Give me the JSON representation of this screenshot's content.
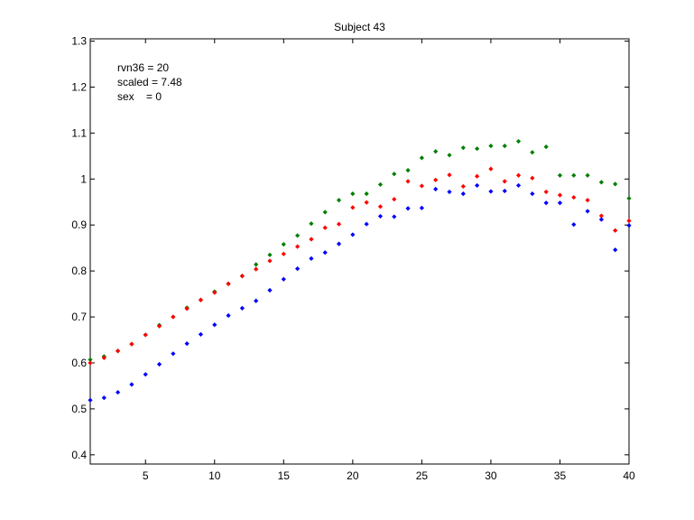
{
  "chart_data": {
    "type": "scatter",
    "title": "Subject 43",
    "xlabel": "",
    "ylabel": "",
    "xlim": [
      1,
      40
    ],
    "ylim": [
      0.38,
      1.305
    ],
    "xticks": [
      5,
      10,
      15,
      20,
      25,
      30,
      35,
      40
    ],
    "yticks": [
      0.4,
      0.5,
      0.6,
      0.7,
      0.8,
      0.9,
      1,
      1.1,
      1.2,
      1.3
    ],
    "xtick_labels": [
      "5",
      "10",
      "15",
      "20",
      "25",
      "30",
      "35",
      "40"
    ],
    "ytick_labels": [
      "0.4",
      "0.5",
      "0.6",
      "0.7",
      "0.8",
      "0.9",
      "1",
      "1.1",
      "1.2",
      "1.3"
    ],
    "grid": false,
    "annotations": [
      "rvn36 = 20",
      "scaled = 7.48",
      "sex    = 0"
    ],
    "x": [
      1,
      2,
      3,
      4,
      5,
      6,
      7,
      8,
      9,
      10,
      11,
      12,
      13,
      14,
      15,
      16,
      17,
      18,
      19,
      20,
      21,
      22,
      23,
      24,
      25,
      26,
      27,
      28,
      29,
      30,
      31,
      32,
      33,
      34,
      35,
      36,
      37,
      38,
      39,
      40
    ],
    "series": [
      {
        "color": "#008000",
        "values": [
          0.607,
          0.614,
          0.626,
          0.641,
          0.661,
          0.682,
          0.7,
          0.72,
          0.737,
          0.755,
          0.772,
          0.789,
          0.814,
          0.835,
          0.858,
          0.877,
          0.903,
          0.928,
          0.954,
          0.968,
          0.968,
          0.988,
          1.011,
          1.019,
          1.046,
          1.06,
          1.052,
          1.068,
          1.066,
          1.072,
          1.072,
          1.082,
          1.058,
          1.07,
          1.008,
          1.008,
          1.008,
          0.993,
          0.989,
          0.958
        ]
      },
      {
        "color": "#ff0000",
        "values": [
          0.6,
          0.611,
          0.626,
          0.641,
          0.661,
          0.68,
          0.7,
          0.718,
          0.737,
          0.753,
          0.772,
          0.789,
          0.804,
          0.822,
          0.837,
          0.853,
          0.869,
          0.894,
          0.902,
          0.938,
          0.949,
          0.94,
          0.956,
          0.995,
          0.985,
          0.998,
          1.009,
          0.984,
          1.006,
          1.022,
          0.995,
          1.008,
          1.002,
          0.972,
          0.965,
          0.96,
          0.954,
          0.92,
          0.888,
          0.909
        ]
      },
      {
        "color": "#0000ff",
        "values": [
          0.519,
          0.524,
          0.536,
          0.553,
          0.575,
          0.597,
          0.62,
          0.642,
          0.662,
          0.683,
          0.703,
          0.719,
          0.735,
          0.758,
          0.782,
          0.805,
          0.827,
          0.84,
          0.859,
          0.879,
          0.902,
          0.919,
          0.918,
          0.936,
          0.937,
          0.978,
          0.972,
          0.968,
          0.986,
          0.973,
          0.974,
          0.986,
          0.968,
          0.948,
          0.948,
          0.901,
          0.93,
          0.912,
          0.846,
          0.899
        ]
      }
    ]
  }
}
